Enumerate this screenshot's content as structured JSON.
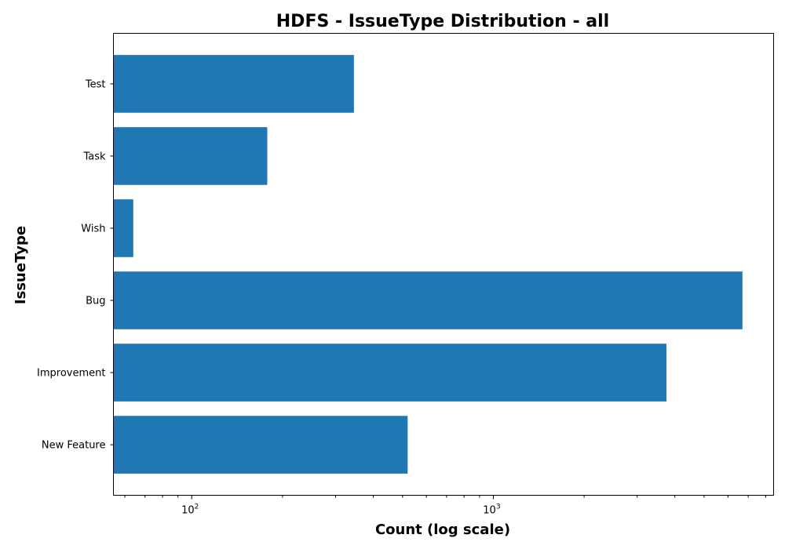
{
  "chart_data": {
    "type": "bar",
    "orientation": "horizontal",
    "title": "HDFS - IssueType Distribution - all",
    "xlabel": "Count (log scale)",
    "ylabel": "IssueType",
    "x_scale": "log",
    "xlim": [
      55,
      8500
    ],
    "categories": [
      "New Feature",
      "Improvement",
      "Bug",
      "Wish",
      "Task",
      "Test"
    ],
    "values": [
      520,
      3750,
      6700,
      64,
      178,
      345
    ],
    "x_ticks": [
      {
        "base": "10",
        "exp": "2",
        "value": 100
      },
      {
        "base": "10",
        "exp": "3",
        "value": 1000
      }
    ],
    "bar_color": "#1f77b4",
    "grid": false,
    "legend": false
  }
}
